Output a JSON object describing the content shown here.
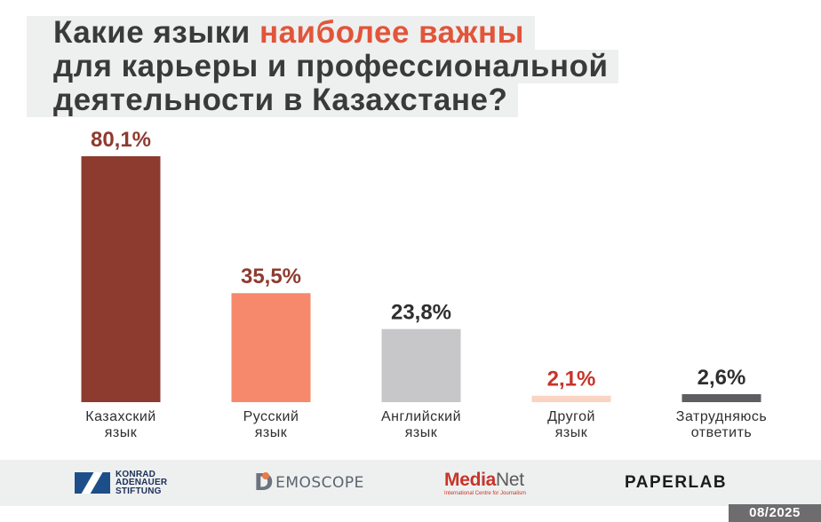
{
  "title": {
    "line1_pre": "Какие языки ",
    "line1_highlight": "наиболее важны",
    "line2": "для карьеры и профессиональной",
    "line3": "деятельности в Казахстане?"
  },
  "chart_data": {
    "type": "bar",
    "unit": "%",
    "ylim": [
      0,
      80.1
    ],
    "grid": false,
    "legend": "none",
    "bars": [
      {
        "label_line1": "Казахский",
        "label_line2": "язык",
        "value": 80.1,
        "display": "80,1%",
        "color": "#8e3b2f",
        "label_color": "#8e3b2f"
      },
      {
        "label_line1": "Русский",
        "label_line2": "язык",
        "value": 35.5,
        "display": "35,5%",
        "color": "#f6886b",
        "label_color": "#8e3b2f"
      },
      {
        "label_line1": "Английский",
        "label_line2": "язык",
        "value": 23.8,
        "display": "23,8%",
        "color": "#c7c7c9",
        "label_color": "#2f2f2f"
      },
      {
        "label_line1": "Другой",
        "label_line2": "язык",
        "value": 2.1,
        "display": "2,1%",
        "color": "#fbd3c3",
        "label_color": "#c7342b"
      },
      {
        "label_line1": "Затрудняюсь",
        "label_line2": "ответить",
        "value": 2.6,
        "display": "2,6%",
        "color": "#5d5e62",
        "label_color": "#2f2f2f"
      }
    ]
  },
  "footer": {
    "kas_line1": "KONRAD",
    "kas_line2": "ADENAUER",
    "kas_line3": "STIFTUNG",
    "demoscope_d": "D",
    "demoscope_rest": "EMOSCOPE",
    "medianet_media": "Media",
    "medianet_net": "Net",
    "medianet_sub": "International Centre for Journalism",
    "paperlab": "PAPERLAB",
    "date": "08/2025"
  },
  "colors": {
    "title_text": "#3a3a3a",
    "title_highlight": "#e2553a",
    "title_bg": "#eef0ef",
    "footer_bg": "#eef0ef",
    "date_badge_bg": "#6d6d70"
  }
}
